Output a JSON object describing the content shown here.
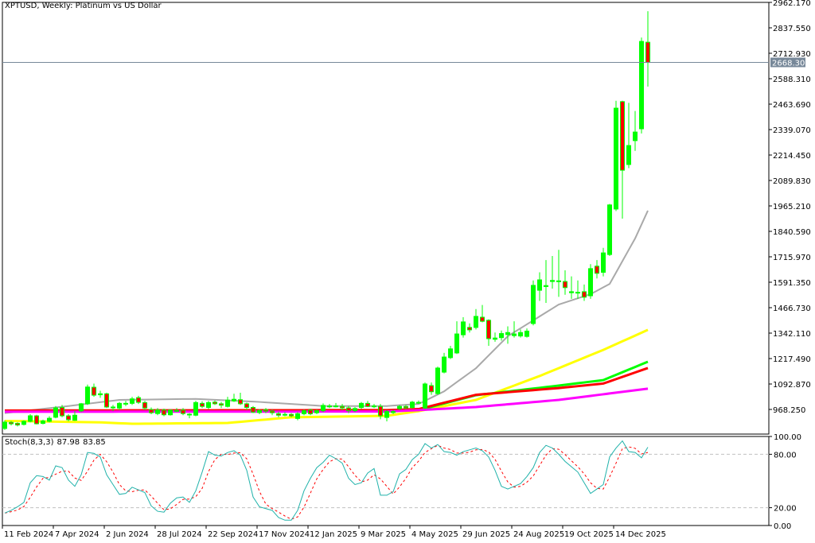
{
  "header": {
    "symbol": "XPTUSD",
    "timeframe": "Weekly",
    "title": "XPTUSD, Weekly:  Platinum vs US Dollar"
  },
  "colors": {
    "bull": "#00ff00",
    "bear": "#ff0000",
    "ma1": "#a9a9a9",
    "ma2": "#ffff00",
    "ma3": "#00ff00",
    "ma4": "#ff0000",
    "ma5": "#ff00ff",
    "stoch_main": "#20b2aa",
    "stoch_signal": "#ff0000",
    "price_line": "#778899"
  },
  "chart_data": [
    {
      "type": "candlestick",
      "title": "XPTUSD, Weekly:  Platinum vs US Dollar",
      "ylim": [
        920,
        2962.17
      ],
      "y_ticks": [
        "2962.170",
        "2837.550",
        "2712.930",
        "2588.310",
        "2463.690",
        "2339.070",
        "2214.450",
        "2089.830",
        "1965.210",
        "1840.590",
        "1715.970",
        "1591.350",
        "1466.730",
        "1342.110",
        "1217.490",
        "1092.870",
        "968.250"
      ],
      "current_price": "2668.301",
      "x_ticks": [
        {
          "label": "11 Feb 2024",
          "index": 0
        },
        {
          "label": "7 Apr 2024",
          "index": 8
        },
        {
          "label": "2 Jun 2024",
          "index": 16
        },
        {
          "label": "28 Jul 2024",
          "index": 24
        },
        {
          "label": "22 Sep 2024",
          "index": 32
        },
        {
          "label": "17 Nov 2024",
          "index": 40
        },
        {
          "label": "12 Jan 2025",
          "index": 48
        },
        {
          "label": "9 Mar 2025",
          "index": 56
        },
        {
          "label": "4 May 2025",
          "index": 64
        },
        {
          "label": "29 Jun 2025",
          "index": 72
        },
        {
          "label": "24 Aug 2025",
          "index": 80
        },
        {
          "label": "19 Oct 2025",
          "index": 88
        },
        {
          "label": "14 Dec 2025",
          "index": 96
        }
      ],
      "ohlc": [
        [
          875,
          915,
          868,
          906
        ],
        [
          905,
          912,
          890,
          898
        ],
        [
          900,
          905,
          885,
          892
        ],
        [
          895,
          915,
          890,
          910
        ],
        [
          910,
          945,
          905,
          937
        ],
        [
          937,
          942,
          895,
          898
        ],
        [
          900,
          918,
          895,
          912
        ],
        [
          910,
          935,
          905,
          925
        ],
        [
          930,
          985,
          925,
          976
        ],
        [
          978,
          990,
          930,
          937
        ],
        [
          937,
          945,
          910,
          918
        ],
        [
          915,
          960,
          912,
          940
        ],
        [
          961,
          1000,
          955,
          996
        ],
        [
          996,
          1090,
          990,
          1078
        ],
        [
          1077,
          1095,
          1030,
          1038
        ],
        [
          1040,
          1060,
          1025,
          1045
        ],
        [
          1045,
          1050,
          975,
          980
        ],
        [
          980,
          990,
          960,
          978
        ],
        [
          975,
          1005,
          965,
          998
        ],
        [
          996,
          1010,
          985,
          998
        ],
        [
          998,
          1030,
          990,
          1020
        ],
        [
          1026,
          1035,
          995,
          1003
        ],
        [
          1002,
          1010,
          965,
          975
        ],
        [
          968,
          978,
          945,
          952
        ],
        [
          948,
          975,
          940,
          965
        ],
        [
          965,
          972,
          935,
          942
        ],
        [
          942,
          968,
          938,
          965
        ],
        [
          963,
          975,
          955,
          961
        ],
        [
          965,
          975,
          940,
          948
        ],
        [
          945,
          950,
          925,
          943
        ],
        [
          940,
          1010,
          935,
          1002
        ],
        [
          998,
          1008,
          975,
          983
        ],
        [
          978,
          1010,
          970,
          1002
        ],
        [
          1004,
          1012,
          990,
          996
        ],
        [
          996,
          1005,
          975,
          989
        ],
        [
          983,
          1030,
          978,
          1014
        ],
        [
          1010,
          1045,
          1005,
          1018
        ],
        [
          1016,
          1050,
          990,
          996
        ],
        [
          996,
          1002,
          965,
          978
        ],
        [
          978,
          985,
          950,
          955
        ],
        [
          953,
          970,
          945,
          963
        ],
        [
          967,
          975,
          950,
          960
        ],
        [
          960,
          968,
          940,
          952
        ],
        [
          947,
          958,
          930,
          940
        ],
        [
          944,
          955,
          935,
          942
        ],
        [
          944,
          950,
          930,
          937
        ],
        [
          924,
          955,
          915,
          947
        ],
        [
          947,
          968,
          940,
          962
        ],
        [
          965,
          972,
          940,
          947
        ],
        [
          952,
          968,
          945,
          962
        ],
        [
          962,
          998,
          955,
          988
        ],
        [
          983,
          995,
          975,
          985
        ],
        [
          983,
          1000,
          978,
          985
        ],
        [
          983,
          995,
          965,
          976
        ],
        [
          976,
          985,
          950,
          962
        ],
        [
          962,
          980,
          955,
          973
        ],
        [
          978,
          1005,
          970,
          998
        ],
        [
          998,
          1010,
          980,
          983
        ],
        [
          983,
          995,
          975,
          985
        ],
        [
          983,
          995,
          920,
          937
        ],
        [
          929,
          965,
          910,
          958
        ],
        [
          953,
          965,
          945,
          958
        ],
        [
          973,
          990,
          965,
          983
        ],
        [
          983,
          990,
          970,
          976
        ],
        [
          978,
          1010,
          972,
          1004
        ],
        [
          1000,
          1012,
          995,
          1003
        ],
        [
          975,
          1100,
          970,
          1093
        ],
        [
          1085,
          1100,
          1040,
          1055
        ],
        [
          1046,
          1178,
          1040,
          1171
        ],
        [
          1151,
          1245,
          1145,
          1225
        ],
        [
          1222,
          1280,
          1215,
          1265
        ],
        [
          1245,
          1400,
          1240,
          1338
        ],
        [
          1334,
          1420,
          1320,
          1397
        ],
        [
          1370,
          1390,
          1345,
          1358
        ],
        [
          1370,
          1460,
          1360,
          1424
        ],
        [
          1420,
          1480,
          1395,
          1400
        ],
        [
          1405,
          1410,
          1280,
          1315
        ],
        [
          1312,
          1345,
          1300,
          1318
        ],
        [
          1320,
          1355,
          1305,
          1340
        ],
        [
          1335,
          1375,
          1290,
          1345
        ],
        [
          1330,
          1400,
          1320,
          1338
        ],
        [
          1328,
          1360,
          1320,
          1345
        ],
        [
          1326,
          1365,
          1320,
          1352
        ],
        [
          1389,
          1600,
          1380,
          1576
        ],
        [
          1552,
          1640,
          1500,
          1603
        ],
        [
          1570,
          1700,
          1490,
          1575
        ],
        [
          1595,
          1720,
          1560,
          1600
        ],
        [
          1595,
          1750,
          1520,
          1598
        ],
        [
          1595,
          1650,
          1530,
          1565
        ],
        [
          1540,
          1620,
          1510,
          1545
        ],
        [
          1540,
          1600,
          1510,
          1542
        ],
        [
          1545,
          1580,
          1500,
          1518
        ],
        [
          1525,
          1680,
          1510,
          1658
        ],
        [
          1670,
          1700,
          1610,
          1635
        ],
        [
          1640,
          1760,
          1620,
          1735
        ],
        [
          1727,
          1975,
          1720,
          1970
        ],
        [
          1950,
          2480,
          1940,
          2444
        ],
        [
          2476,
          2480,
          1903,
          2140
        ],
        [
          2168,
          2470,
          2150,
          2261
        ],
        [
          2285,
          2430,
          2235,
          2327
        ],
        [
          2343,
          2790,
          2320,
          2771
        ],
        [
          2767,
          2919,
          2550,
          2668
        ]
      ],
      "moving_averages": [
        {
          "color": "#a9a9a9",
          "points": [
            [
              0,
              950
            ],
            [
              10,
              985
            ],
            [
              18,
              1015
            ],
            [
              30,
              1020
            ],
            [
              40,
              1005
            ],
            [
              50,
              985
            ],
            [
              60,
              985
            ],
            [
              65,
              995
            ],
            [
              69,
              1057
            ],
            [
              74,
              1170
            ],
            [
              79,
              1327
            ],
            [
              87,
              1482
            ],
            [
              92,
              1533
            ],
            [
              95,
              1583
            ],
            [
              99,
              1806
            ],
            [
              101,
              1942
            ]
          ]
        },
        {
          "color": "#ffff00",
          "points": [
            [
              0,
              912
            ],
            [
              15,
              905
            ],
            [
              20,
              898
            ],
            [
              35,
              902
            ],
            [
              45,
              930
            ],
            [
              60,
              937
            ],
            [
              65,
              960
            ],
            [
              74,
              1015
            ],
            [
              84,
              1132
            ],
            [
              94,
              1260
            ],
            [
              101,
              1358
            ]
          ]
        },
        {
          "color": "#00ff00",
          "points": [
            [
              0,
              958
            ],
            [
              60,
              962
            ],
            [
              65,
              965
            ],
            [
              74,
              1038
            ],
            [
              87,
              1085
            ],
            [
              94,
              1112
            ],
            [
              101,
              1202
            ]
          ]
        },
        {
          "color": "#ff0000",
          "points": [
            [
              0,
              963
            ],
            [
              60,
              965
            ],
            [
              65,
              970
            ],
            [
              74,
              1040
            ],
            [
              87,
              1073
            ],
            [
              94,
              1095
            ],
            [
              101,
              1171
            ]
          ]
        },
        {
          "color": "#ff00ff",
          "points": [
            [
              0,
              957
            ],
            [
              60,
              958
            ],
            [
              65,
              965
            ],
            [
              74,
              980
            ],
            [
              87,
              1015
            ],
            [
              101,
              1070
            ]
          ]
        }
      ]
    },
    {
      "type": "line",
      "title": "Stoch(8,3,3)",
      "label": "Stoch(8,3,3)",
      "last_main": "87.98",
      "last_signal": "83.85",
      "ylim": [
        0,
        100
      ],
      "y_ticks": [
        "100.00",
        "80.00",
        "20.00",
        "0.00"
      ],
      "levels": [
        80,
        20
      ],
      "main": [
        14,
        17,
        21,
        26,
        48,
        56,
        55,
        51,
        67,
        65,
        51,
        44,
        57,
        82,
        81,
        77,
        57,
        46,
        35,
        36,
        43,
        40,
        37,
        22,
        16,
        15,
        25,
        31,
        32,
        26,
        39,
        60,
        83,
        79,
        78,
        82,
        84,
        79,
        62,
        32,
        21,
        19,
        17,
        9,
        6,
        6,
        17,
        39,
        53,
        65,
        71,
        79,
        75,
        70,
        53,
        46,
        48,
        59,
        64,
        34,
        34,
        38,
        58,
        63,
        74,
        80,
        92,
        87,
        91,
        83,
        82,
        79,
        83,
        85,
        87,
        84,
        77,
        62,
        44,
        41,
        44,
        47,
        55,
        65,
        82,
        90,
        87,
        80,
        72,
        66,
        60,
        48,
        36,
        41,
        46,
        77,
        87,
        95,
        83,
        82,
        76,
        87.98
      ]
    }
  ]
}
